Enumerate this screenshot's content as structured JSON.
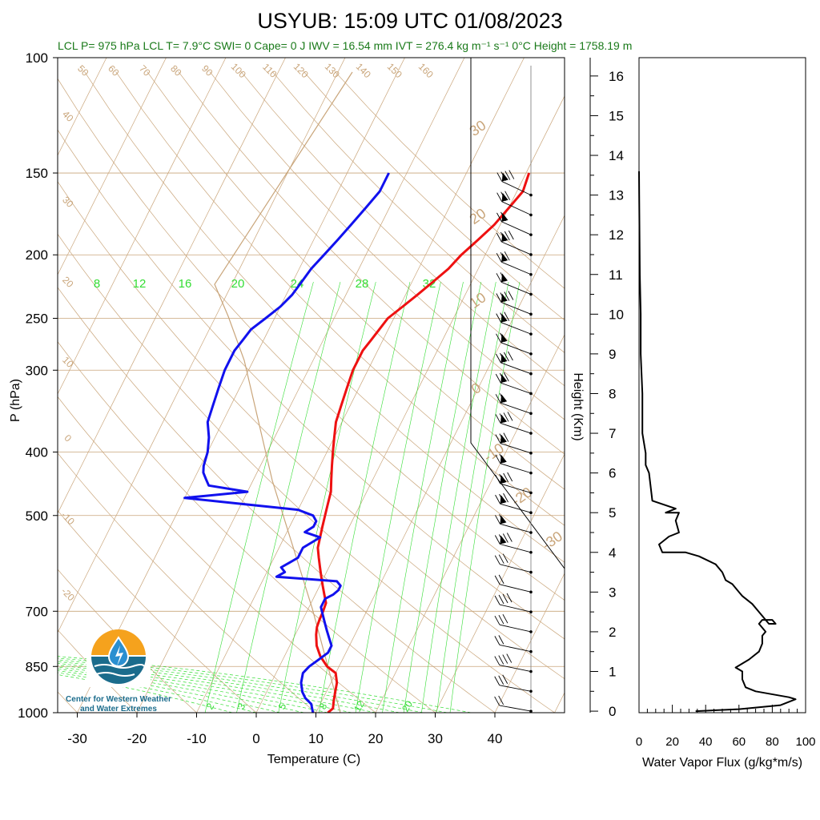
{
  "title": "USYUB: 15:09 UTC 01/08/2023",
  "info_line": "LCL P= 975 hPa  LCL T= 7.9°C  SWI= 0  Cape= 0 J  IWV = 16.54 mm  IVT = 276.4 kg m⁻¹ s⁻¹   0°C Height = 1758.19 m",
  "logo_text": [
    "Center for Western Weather",
    "and Water Extremes"
  ],
  "colors": {
    "temperature": "#ee1111",
    "dewpoint": "#1111ee",
    "isotherm": "#c9a57a",
    "mixing_ratio": "#33dd33",
    "flux": "#000000"
  },
  "chart_data": [
    {
      "type": "line",
      "name": "skew-T sounding",
      "xlabel": "Temperature (C)",
      "ylabel": "P (hPa)",
      "x_ticks": [
        "-30",
        "-20",
        "-10",
        "0",
        "10",
        "20",
        "30",
        "40"
      ],
      "y_ticks": [
        "100",
        "150",
        "200",
        "250",
        "300",
        "400",
        "500",
        "700",
        "850",
        "1000"
      ],
      "y_scale": "log",
      "xlim": [
        -34,
        50
      ],
      "ylim": [
        1000,
        100
      ],
      "isotherm_labels": [
        "50",
        "60",
        "70",
        "80",
        "90",
        "100",
        "110",
        "120",
        "130",
        "140",
        "150",
        "160",
        "40",
        "30",
        "20",
        "10",
        "0",
        "-10",
        "-20",
        "30",
        "20",
        "10",
        "0",
        "-10",
        "-20",
        "-30"
      ],
      "mixing_ratio_labels_top": [
        "8",
        "12",
        "16",
        "20",
        "24",
        "28",
        "32"
      ],
      "mixing_ratio_labels_bottom": [
        "2",
        "3",
        "5",
        "8",
        "12",
        "20"
      ],
      "series": [
        {
          "name": "Temperature",
          "p": [
            1000,
            985,
            960,
            930,
            900,
            870,
            850,
            820,
            790,
            760,
            740,
            720,
            700,
            680,
            660,
            640,
            620,
            600,
            580,
            560,
            540,
            520,
            500,
            480,
            460,
            440,
            420,
            400,
            380,
            360,
            340,
            320,
            300,
            290,
            280,
            270,
            260,
            250,
            240,
            230,
            220,
            210,
            200,
            190,
            180,
            170,
            160,
            150
          ],
          "t": [
            12,
            12.5,
            12,
            11.5,
            11,
            10,
            8,
            6,
            4.5,
            3.5,
            3,
            2.8,
            2.7,
            2.5,
            1.5,
            0.5,
            -0.5,
            -1.5,
            -2.5,
            -3.5,
            -4,
            -4.5,
            -5,
            -5.5,
            -6,
            -7,
            -8,
            -9,
            -10,
            -11,
            -11.5,
            -12,
            -12.5,
            -12.5,
            -12.5,
            -12,
            -11.5,
            -11,
            -9.5,
            -8,
            -6.5,
            -5,
            -4,
            -2.5,
            -1,
            0,
            1,
            0.5
          ]
        },
        {
          "name": "Dewpoint",
          "p": [
            1000,
            985,
            970,
            950,
            930,
            900,
            870,
            850,
            830,
            810,
            790,
            770,
            750,
            730,
            710,
            700,
            690,
            680,
            670,
            660,
            650,
            640,
            630,
            620,
            610,
            600,
            590,
            580,
            570,
            560,
            550,
            540,
            530,
            520,
            510,
            500,
            490,
            480,
            470,
            460,
            450,
            440,
            430,
            420,
            400,
            380,
            360,
            340,
            320,
            300,
            290,
            280,
            270,
            260,
            250,
            240,
            230,
            220,
            210,
            200,
            190,
            180,
            170,
            160,
            150
          ],
          "t": [
            9.5,
            9,
            8.5,
            7,
            6,
            5,
            4.5,
            5,
            6,
            7,
            7,
            6,
            5,
            4,
            3,
            2.5,
            2,
            2,
            2,
            3,
            3.5,
            3.5,
            2.5,
            -8,
            -7,
            -8,
            -7,
            -6,
            -6,
            -6,
            -5,
            -4,
            -7,
            -6,
            -6,
            -7,
            -10,
            -20,
            -30,
            -20,
            -27,
            -28,
            -29,
            -29.5,
            -30,
            -31,
            -32.5,
            -33,
            -33.5,
            -34,
            -34,
            -34,
            -33.5,
            -33,
            -31.5,
            -30,
            -29,
            -28.5,
            -28,
            -27,
            -26,
            -25,
            -24,
            -23,
            -23
          ]
        }
      ],
      "wind_barbs_km": [
        "0",
        "0.5",
        "1",
        "1.5",
        "2",
        "2.5",
        "3",
        "3.5",
        "4",
        "4.5",
        "5",
        "5.5",
        "6",
        "6.5",
        "7",
        "7.5",
        "8",
        "8.5",
        "9",
        "9.5",
        "10",
        "10.5",
        "11",
        "11.5",
        "12",
        "12.5",
        "13"
      ]
    },
    {
      "type": "line",
      "name": "water vapor flux profile",
      "xlabel": "Water Vapor Flux (g/kg*m/s)",
      "ylabel": "Height (Km)",
      "x_ticks": [
        "0",
        "20",
        "40",
        "60",
        "80",
        "100"
      ],
      "y_ticks": [
        "0",
        "1",
        "2",
        "3",
        "4",
        "5",
        "6",
        "7",
        "8",
        "9",
        "10",
        "11",
        "12",
        "13",
        "14",
        "15",
        "16"
      ],
      "xlim": [
        0,
        100
      ],
      "ylim": [
        -0.2,
        16.3
      ],
      "x": [
        34,
        60,
        85,
        94,
        90,
        70,
        64,
        62,
        62,
        60,
        58,
        66,
        72,
        74,
        74,
        76,
        72,
        74,
        80,
        82,
        78,
        68,
        62,
        60,
        56,
        52,
        50,
        46,
        36,
        28,
        14,
        12,
        18,
        24,
        22,
        24,
        16,
        22,
        8,
        6,
        4,
        4,
        2,
        2,
        1,
        1,
        0.5,
        0.3,
        0.1,
        0
      ],
      "y": [
        0,
        0.05,
        0.15,
        0.3,
        0.35,
        0.5,
        0.6,
        0.8,
        1,
        1.05,
        1.1,
        1.3,
        1.5,
        1.7,
        1.9,
        2.0,
        2.2,
        2.3,
        2.3,
        2.2,
        2.2,
        2.7,
        2.9,
        3.0,
        3.2,
        3.3,
        3.5,
        3.7,
        3.9,
        4.0,
        4.0,
        4.2,
        4.4,
        4.5,
        4.8,
        5.0,
        5.0,
        5.1,
        5.3,
        6.0,
        6.2,
        6.5,
        7,
        8,
        9,
        10,
        11,
        12,
        13,
        13.6
      ]
    }
  ]
}
